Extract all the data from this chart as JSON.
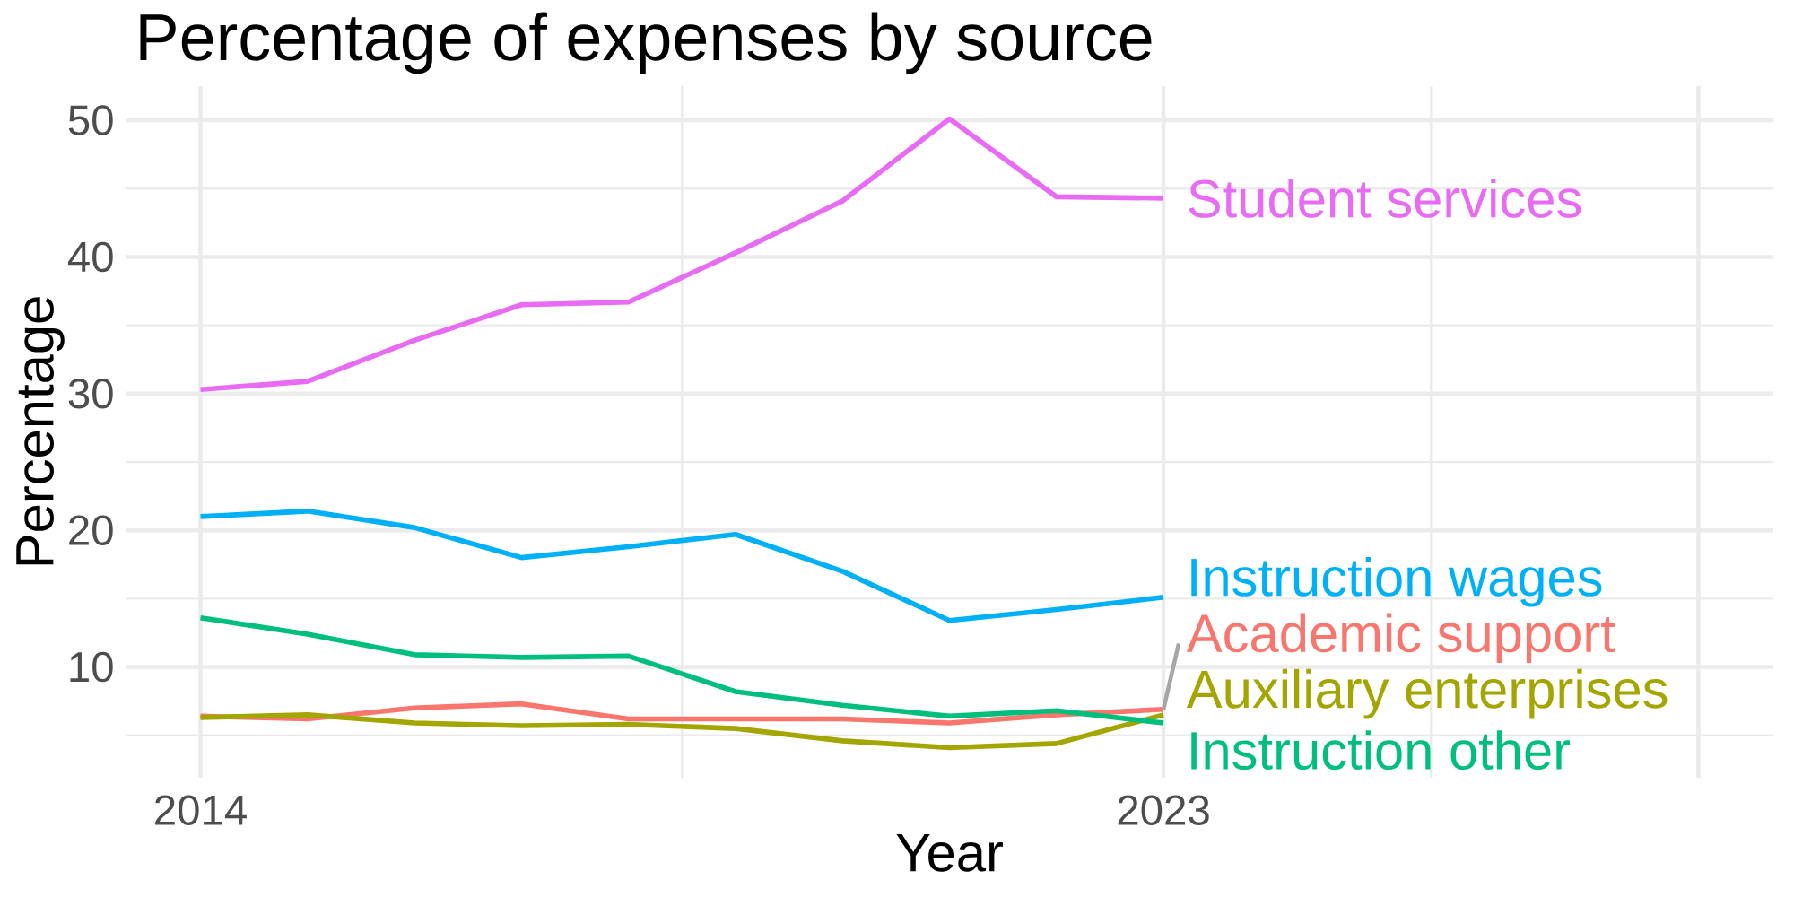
{
  "chart_data": {
    "type": "line",
    "title": "Percentage of expenses by source",
    "xlabel": "Year",
    "ylabel": "Percentage",
    "x": [
      2014,
      2015,
      2016,
      2017,
      2018,
      2019,
      2020,
      2021,
      2022,
      2023
    ],
    "series": [
      {
        "name": "Student services",
        "color": "#e76bf3",
        "values": [
          30.3,
          30.9,
          33.9,
          36.5,
          36.7,
          40.3,
          44.1,
          50.1,
          44.4,
          44.3
        ]
      },
      {
        "name": "Instruction wages",
        "color": "#00b0f6",
        "values": [
          21.0,
          21.4,
          20.2,
          18.0,
          18.8,
          19.7,
          17.0,
          13.4,
          14.2,
          15.1
        ]
      },
      {
        "name": "Academic support",
        "color": "#f8766d",
        "values": [
          6.4,
          6.2,
          7.0,
          7.3,
          6.2,
          6.2,
          6.2,
          5.9,
          6.5,
          6.9
        ]
      },
      {
        "name": "Auxiliary enterprises",
        "color": "#a3a500",
        "values": [
          6.3,
          6.5,
          5.9,
          5.7,
          5.8,
          5.5,
          4.6,
          4.1,
          4.4,
          6.5
        ]
      },
      {
        "name": "Instruction other",
        "color": "#00bf7d",
        "values": [
          13.6,
          12.4,
          10.9,
          10.7,
          10.8,
          8.2,
          7.2,
          6.4,
          6.8,
          5.9
        ]
      }
    ],
    "xlim": [
      2013.3,
      2028.7
    ],
    "ylim": [
      1.9,
      52.5
    ],
    "xticks": [
      2014,
      2023,
      {
        "value": 2028,
        "label": null
      }
    ],
    "yticks": [
      10,
      20,
      30,
      40,
      50
    ],
    "grid": true,
    "legend": false,
    "marker": "none",
    "line_style": "solid"
  }
}
